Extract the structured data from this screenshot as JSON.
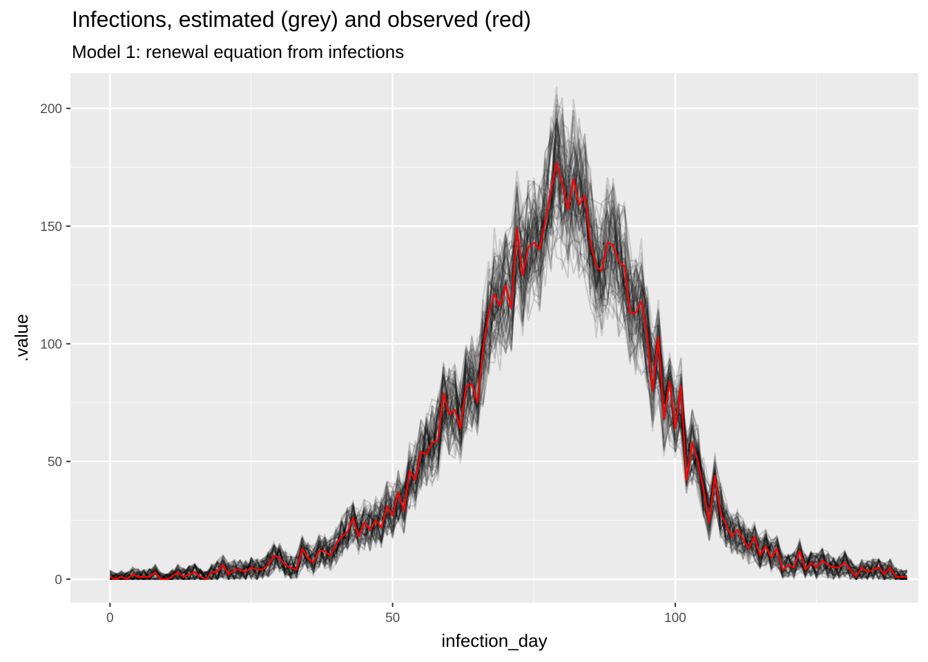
{
  "chart_data": {
    "type": "line",
    "title": "Infections, estimated (grey) and observed (red)",
    "subtitle": "Model 1: renewal equation from infections",
    "xlabel": "infection_day",
    "ylabel": ".value",
    "xlim": [
      -7,
      143
    ],
    "ylim": [
      -10,
      215
    ],
    "x_ticks": [
      0,
      50,
      100
    ],
    "y_ticks": [
      0,
      50,
      100,
      150,
      200
    ],
    "grid": true,
    "panel_background": "#ebebeb",
    "observed_color": "#ff0000",
    "estimated_color": "#000000",
    "series": [
      {
        "name": "observed (red)",
        "x": [
          0,
          1,
          2,
          3,
          4,
          5,
          6,
          7,
          8,
          9,
          10,
          11,
          12,
          13,
          14,
          15,
          16,
          17,
          18,
          19,
          20,
          21,
          22,
          23,
          24,
          25,
          26,
          27,
          28,
          29,
          30,
          31,
          32,
          33,
          34,
          35,
          36,
          37,
          38,
          39,
          40,
          41,
          42,
          43,
          44,
          45,
          46,
          47,
          48,
          49,
          50,
          51,
          52,
          53,
          54,
          55,
          56,
          57,
          58,
          59,
          60,
          61,
          62,
          63,
          64,
          65,
          66,
          67,
          68,
          69,
          70,
          71,
          72,
          73,
          74,
          75,
          76,
          77,
          78,
          79,
          80,
          81,
          82,
          83,
          84,
          85,
          86,
          87,
          88,
          89,
          90,
          91,
          92,
          93,
          94,
          95,
          96,
          97,
          98,
          99,
          100,
          101,
          102,
          103,
          104,
          105,
          106,
          107,
          108,
          109,
          110,
          111,
          112,
          113,
          114,
          115,
          116,
          117,
          118,
          119,
          120,
          121,
          122,
          123,
          124,
          125,
          126,
          127,
          128,
          129,
          130,
          131,
          132,
          133,
          134,
          135,
          136,
          137,
          138,
          139,
          140,
          141
        ],
        "values": [
          1,
          0,
          1,
          0,
          2,
          1,
          1,
          1,
          3,
          0,
          0,
          1,
          3,
          1,
          2,
          3,
          1,
          0,
          3,
          3,
          6,
          2,
          4,
          4,
          3,
          5,
          4,
          4,
          6,
          10,
          9,
          6,
          5,
          4,
          13,
          9,
          7,
          12,
          12,
          10,
          15,
          18,
          20,
          26,
          18,
          24,
          21,
          25,
          22,
          31,
          27,
          37,
          29,
          46,
          42,
          54,
          53,
          58,
          59,
          79,
          70,
          72,
          64,
          82,
          83,
          75,
          98,
          113,
          121,
          116,
          125,
          115,
          149,
          129,
          141,
          143,
          140,
          152,
          165,
          177,
          168,
          157,
          170,
          159,
          163,
          143,
          133,
          131,
          143,
          142,
          135,
          133,
          113,
          113,
          118,
          104,
          80,
          103,
          68,
          84,
          64,
          82,
          42,
          58,
          50,
          38,
          24,
          44,
          28,
          23,
          18,
          21,
          17,
          13,
          18,
          10,
          14,
          9,
          13,
          4,
          6,
          5,
          12,
          4,
          7,
          5,
          8,
          6,
          5,
          5,
          7,
          4,
          1,
          5,
          3,
          4,
          5,
          2,
          5,
          1,
          1,
          1
        ]
      }
    ]
  }
}
